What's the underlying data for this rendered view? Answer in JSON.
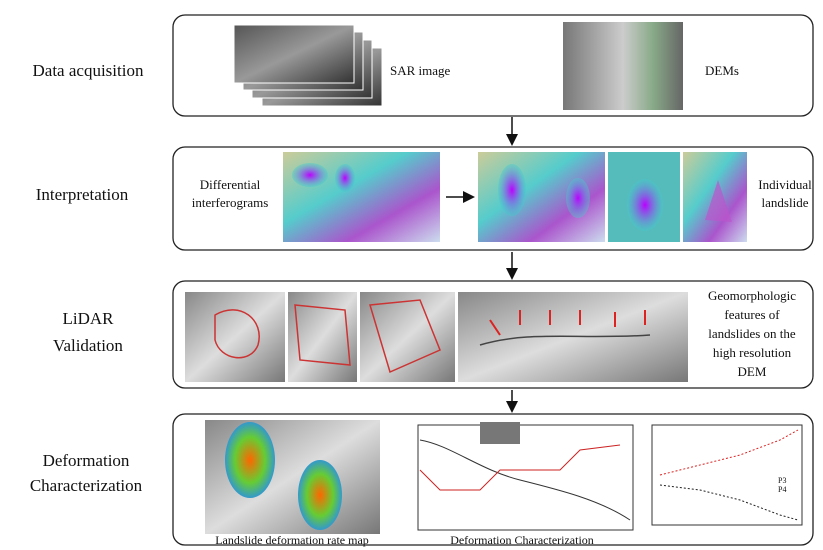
{
  "rows": [
    {
      "label": [
        "Data acquisition"
      ],
      "captions": [
        [
          "SAR image"
        ],
        [
          "DEMs"
        ]
      ]
    },
    {
      "label": [
        "Interpretation"
      ],
      "captions": [
        [
          "Differential",
          "interferograms"
        ],
        [
          "Individual",
          "landslide"
        ]
      ]
    },
    {
      "label": [
        "LiDAR",
        "Validation"
      ],
      "captions": [
        [
          "Geomorphologic",
          "features of",
          "landslides on the",
          "high resolution",
          "DEM"
        ]
      ]
    },
    {
      "label": [
        "Deformation",
        "Characterization"
      ],
      "captions": [
        [
          "Landslide deformation rate map"
        ],
        [
          "Deformation Characterization"
        ]
      ],
      "legend": [
        "P3",
        "P4"
      ]
    }
  ]
}
